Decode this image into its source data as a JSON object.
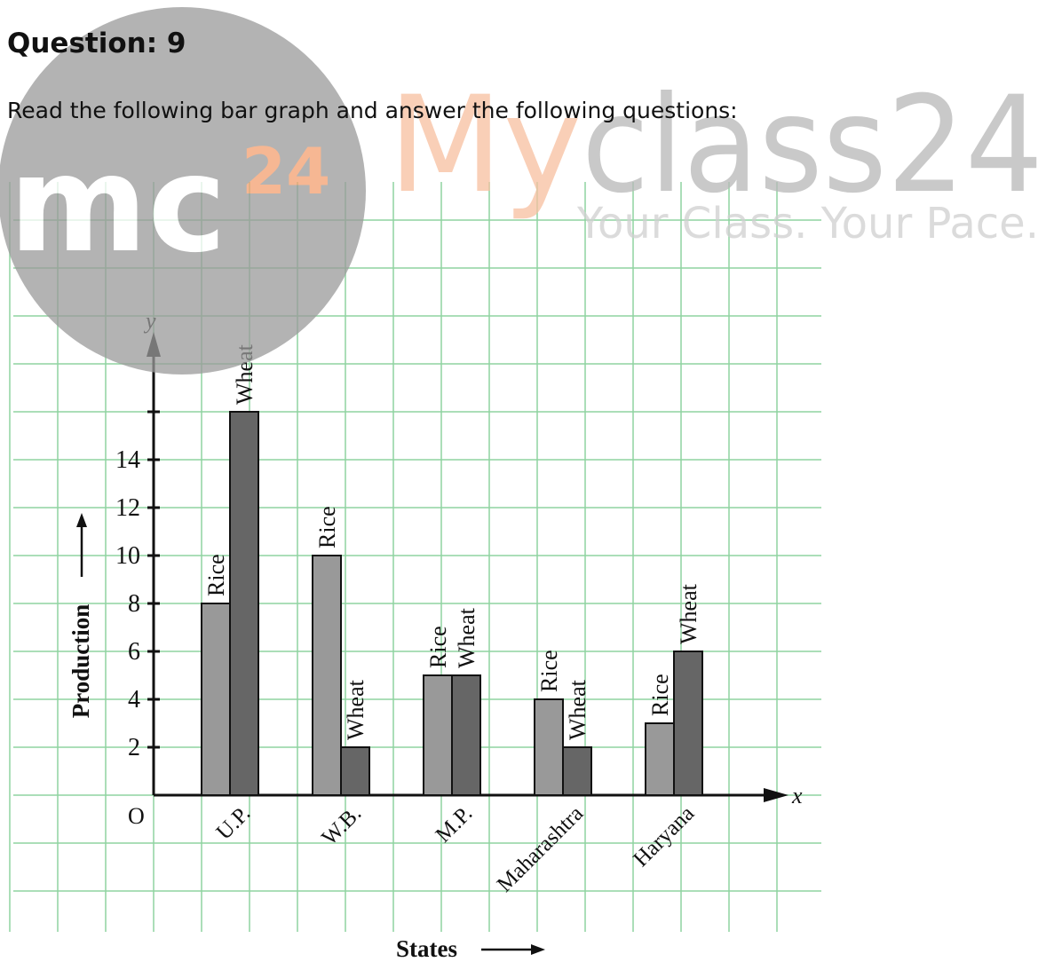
{
  "question": {
    "title": "Question: 9",
    "text": "Read the following bar graph and answer the following questions:"
  },
  "watermark": {
    "logo": "mc",
    "logo_sup": "24",
    "brand_a": "My",
    "brand_b": "class24",
    "tagline": "Your Class. Your Pace."
  },
  "chart_data": {
    "type": "bar",
    "origin_label": "O",
    "x_axis_symbol": "x",
    "y_axis_symbol": "y",
    "x_label": "States",
    "y_label": "Production",
    "categories": [
      "U.P.",
      "W.B.",
      "M.P.",
      "Maharashtra",
      "Haryana"
    ],
    "series": [
      {
        "name": "Rice",
        "color": "#999999",
        "values": [
          8,
          10,
          5,
          4,
          3
        ]
      },
      {
        "name": "Wheat",
        "color": "#666666",
        "values": [
          16,
          2,
          5,
          2,
          6
        ]
      }
    ],
    "ylim": [
      0,
      20
    ],
    "yticks": [
      2,
      4,
      6,
      8,
      10,
      12,
      14,
      {
        "value": 16,
        "label": null
      }
    ],
    "grid": true
  }
}
